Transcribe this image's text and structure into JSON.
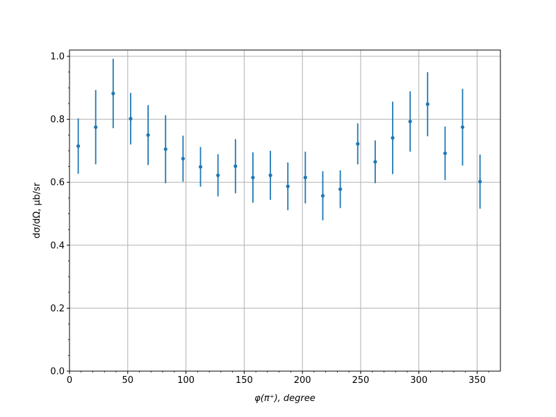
{
  "chart_data": {
    "type": "scatter",
    "xlabel": "φ(π⁺), degree",
    "ylabel": "dσ/dΩ, μb/sr",
    "xlim": [
      0,
      370
    ],
    "ylim": [
      0,
      1.02
    ],
    "x_ticks": [
      0,
      50,
      100,
      150,
      200,
      250,
      300,
      350
    ],
    "y_ticks": [
      0.0,
      0.2,
      0.4,
      0.6,
      0.8,
      1.0
    ],
    "x_tick_labels": [
      "0",
      "50",
      "100",
      "150",
      "200",
      "250",
      "300",
      "350"
    ],
    "y_tick_labels": [
      "0.0",
      "0.2",
      "0.4",
      "0.6",
      "0.8",
      "1.0"
    ],
    "grid": true,
    "color": "#1f77b4",
    "x": [
      7.5,
      22.5,
      37.5,
      52.5,
      67.5,
      82.5,
      97.5,
      112.5,
      127.5,
      142.5,
      157.5,
      172.5,
      187.5,
      202.5,
      217.5,
      232.5,
      247.5,
      262.5,
      277.5,
      292.5,
      307.5,
      322.5,
      337.5,
      352.5
    ],
    "y": [
      0.715,
      0.775,
      0.882,
      0.802,
      0.75,
      0.705,
      0.675,
      0.649,
      0.622,
      0.651,
      0.615,
      0.622,
      0.587,
      0.615,
      0.557,
      0.578,
      0.722,
      0.665,
      0.741,
      0.793,
      0.848,
      0.692,
      0.775,
      0.602
    ],
    "yerr": [
      0.088,
      0.118,
      0.11,
      0.082,
      0.095,
      0.108,
      0.073,
      0.063,
      0.067,
      0.086,
      0.08,
      0.078,
      0.076,
      0.082,
      0.078,
      0.06,
      0.065,
      0.068,
      0.115,
      0.096,
      0.102,
      0.085,
      0.122,
      0.086
    ]
  }
}
